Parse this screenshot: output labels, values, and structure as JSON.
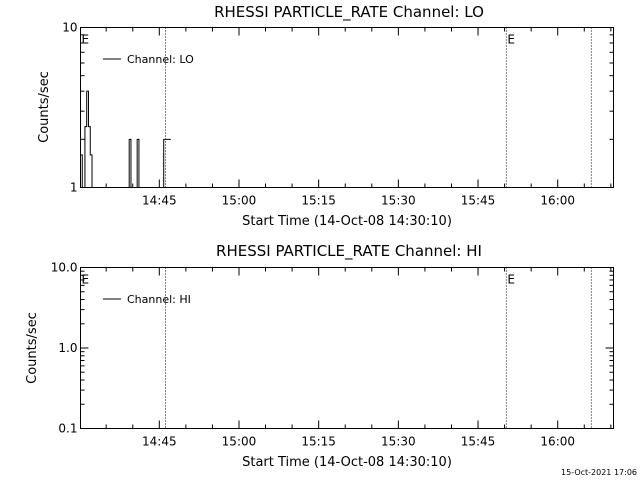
{
  "footer": {
    "timestamp": "15-Oct-2021 17:06"
  },
  "colors": {
    "background": "#ffffff",
    "ink": "#000000"
  },
  "chart_data": [
    {
      "type": "line",
      "title": "RHESSI PARTICLE_RATE Channel: LO",
      "xlabel": "Start Time (14-Oct-08 14:30:10)",
      "ylabel": "Counts/sec",
      "yscale": "log",
      "xlim": [
        "14:30:10",
        "16:10:30"
      ],
      "ylim": [
        1,
        10
      ],
      "xticks": [
        "14:45",
        "15:00",
        "15:15",
        "15:30",
        "15:45",
        "16:00"
      ],
      "yticks": [
        "1",
        "10"
      ],
      "legend": {
        "position": "top-left",
        "entries": [
          "Channel: LO"
        ]
      },
      "event_markers": [
        {
          "time": "14:30:10",
          "label": "E"
        },
        {
          "time": "14:46:10",
          "label": ""
        },
        {
          "time": "15:50:20",
          "label": "E"
        },
        {
          "time": "16:06:20",
          "label": ""
        }
      ],
      "series": [
        {
          "name": "Channel: LO",
          "step": true,
          "x": [
            "14:30:10",
            "14:30:30",
            "14:31:00",
            "14:31:20",
            "14:31:40",
            "14:32:00",
            "14:32:20",
            "14:32:40",
            "14:39:00",
            "14:39:20",
            "14:39:40",
            "14:40:30",
            "14:40:50",
            "14:41:10",
            "14:45:30",
            "14:45:50",
            "14:46:10",
            "14:47:10"
          ],
          "y": [
            1.6,
            1.0,
            2.4,
            4.0,
            2.4,
            1.6,
            1.0,
            1.0,
            1.0,
            2.0,
            1.0,
            1.0,
            2.0,
            1.0,
            1.0,
            2.0,
            2.0,
            2.0
          ]
        }
      ]
    },
    {
      "type": "line",
      "title": "RHESSI PARTICLE_RATE Channel: HI",
      "xlabel": "Start Time (14-Oct-08 14:30:10)",
      "ylabel": "Counts/sec",
      "yscale": "log",
      "xlim": [
        "14:30:10",
        "16:10:30"
      ],
      "ylim": [
        0.1,
        10.0
      ],
      "xticks": [
        "14:45",
        "15:00",
        "15:15",
        "15:30",
        "15:45",
        "16:00"
      ],
      "yticks": [
        "0.1",
        "1.0",
        "10.0"
      ],
      "legend": {
        "position": "top-left",
        "entries": [
          "Channel: HI"
        ]
      },
      "event_markers": [
        {
          "time": "14:30:10",
          "label": "E"
        },
        {
          "time": "14:46:10",
          "label": ""
        },
        {
          "time": "15:50:20",
          "label": "E"
        },
        {
          "time": "16:06:20",
          "label": ""
        }
      ],
      "series": [
        {
          "name": "Channel: HI",
          "step": true,
          "x": [],
          "y": []
        }
      ]
    }
  ]
}
